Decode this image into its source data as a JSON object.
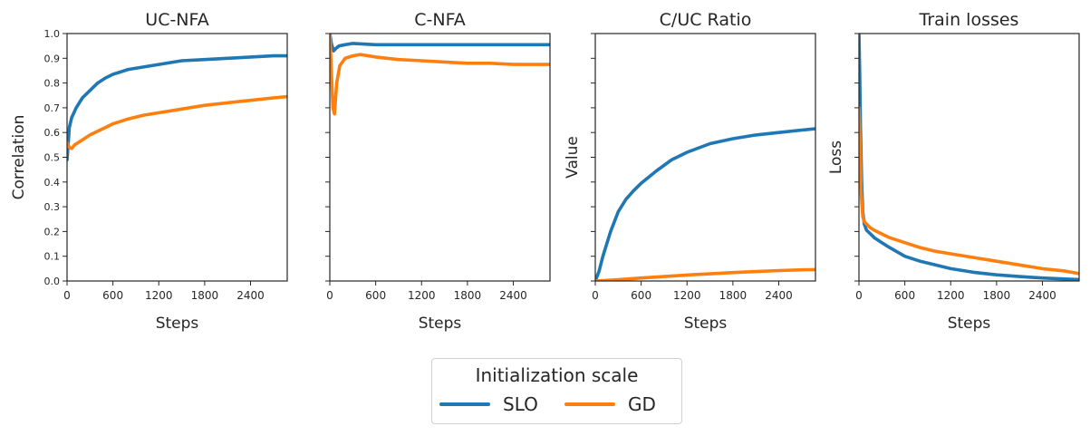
{
  "legend": {
    "title": "Initialization scale",
    "entries": [
      {
        "label": "SLO",
        "color": "#1f77b4"
      },
      {
        "label": "GD",
        "color": "#ff7f0e"
      }
    ],
    "placement": "bottom-center"
  },
  "chart_data": [
    {
      "type": "line",
      "title": "UC-NFA",
      "xlabel": "Steps",
      "ylabel": "Correlation",
      "xlim": [
        0,
        2880
      ],
      "ylim": [
        0,
        1.0
      ],
      "xticks": [
        "0",
        "600",
        "1200",
        "1800",
        "2400"
      ],
      "yticks": [
        "0.0",
        "0.1",
        "0.2",
        "0.3",
        "0.4",
        "0.5",
        "0.6",
        "0.7",
        "0.8",
        "0.9",
        "1.0"
      ],
      "grid": false,
      "series": [
        {
          "name": "SLO",
          "color": "#1f77b4",
          "x": [
            0,
            30,
            60,
            120,
            200,
            300,
            400,
            500,
            600,
            800,
            1000,
            1200,
            1500,
            1800,
            2100,
            2400,
            2700,
            2880
          ],
          "y": [
            0.49,
            0.62,
            0.66,
            0.7,
            0.74,
            0.77,
            0.8,
            0.82,
            0.835,
            0.855,
            0.865,
            0.875,
            0.89,
            0.895,
            0.9,
            0.905,
            0.91,
            0.91
          ]
        },
        {
          "name": "GD",
          "color": "#ff7f0e",
          "x": [
            0,
            30,
            60,
            100,
            200,
            300,
            400,
            500,
            600,
            800,
            1000,
            1200,
            1500,
            1800,
            2100,
            2400,
            2700,
            2880
          ],
          "y": [
            0.56,
            0.54,
            0.535,
            0.55,
            0.57,
            0.59,
            0.605,
            0.62,
            0.635,
            0.655,
            0.67,
            0.68,
            0.695,
            0.71,
            0.72,
            0.73,
            0.74,
            0.745
          ]
        }
      ]
    },
    {
      "type": "line",
      "title": "C-NFA",
      "xlabel": "Steps",
      "ylabel": "",
      "xlim": [
        0,
        2880
      ],
      "ylim": [
        0,
        1.0
      ],
      "xticks": [
        "0",
        "600",
        "1200",
        "1800",
        "2400"
      ],
      "yticks": [],
      "grid": false,
      "series": [
        {
          "name": "SLO",
          "color": "#1f77b4",
          "x": [
            0,
            20,
            50,
            80,
            120,
            200,
            300,
            600,
            900,
            1200,
            1500,
            1800,
            2100,
            2400,
            2700,
            2880
          ],
          "y": [
            1.0,
            0.96,
            0.93,
            0.94,
            0.95,
            0.955,
            0.96,
            0.955,
            0.955,
            0.955,
            0.955,
            0.955,
            0.955,
            0.955,
            0.955,
            0.955
          ]
        },
        {
          "name": "GD",
          "color": "#ff7f0e",
          "x": [
            0,
            20,
            40,
            60,
            90,
            130,
            200,
            300,
            400,
            600,
            900,
            1200,
            1500,
            1800,
            2100,
            2400,
            2700,
            2880
          ],
          "y": [
            1.0,
            0.85,
            0.7,
            0.675,
            0.8,
            0.87,
            0.9,
            0.91,
            0.915,
            0.905,
            0.895,
            0.89,
            0.885,
            0.88,
            0.88,
            0.875,
            0.875,
            0.875
          ]
        }
      ]
    },
    {
      "type": "line",
      "title": "C/UC Ratio",
      "xlabel": "Steps",
      "ylabel": "Value",
      "xlim": [
        0,
        2880
      ],
      "ylim": [
        0,
        1.0
      ],
      "xticks": [
        "0",
        "600",
        "1200",
        "1800",
        "2400"
      ],
      "yticks": [],
      "grid": false,
      "series": [
        {
          "name": "SLO",
          "color": "#1f77b4",
          "x": [
            0,
            50,
            100,
            200,
            300,
            400,
            500,
            600,
            800,
            1000,
            1200,
            1500,
            1800,
            2100,
            2400,
            2700,
            2880
          ],
          "y": [
            0.0,
            0.04,
            0.1,
            0.2,
            0.28,
            0.33,
            0.365,
            0.395,
            0.445,
            0.49,
            0.52,
            0.555,
            0.575,
            0.59,
            0.6,
            0.61,
            0.615
          ]
        },
        {
          "name": "GD",
          "color": "#ff7f0e",
          "x": [
            0,
            300,
            600,
            900,
            1200,
            1500,
            1800,
            2100,
            2400,
            2700,
            2880
          ],
          "y": [
            0.0,
            0.005,
            0.012,
            0.018,
            0.024,
            0.029,
            0.034,
            0.038,
            0.042,
            0.045,
            0.046
          ]
        }
      ]
    },
    {
      "type": "line",
      "title": "Train losses",
      "xlabel": "Steps",
      "ylabel": "Loss",
      "xlim": [
        0,
        2880
      ],
      "ylim": [
        0,
        1.0
      ],
      "xticks": [
        "0",
        "600",
        "1200",
        "1800",
        "2400"
      ],
      "yticks": [],
      "grid": false,
      "series": [
        {
          "name": "SLO",
          "color": "#1f77b4",
          "x": [
            0,
            10,
            20,
            35,
            50,
            70,
            100,
            150,
            200,
            300,
            400,
            600,
            800,
            1000,
            1200,
            1500,
            1800,
            2100,
            2400,
            2700,
            2880
          ],
          "y": [
            1.0,
            0.85,
            0.62,
            0.4,
            0.28,
            0.23,
            0.205,
            0.19,
            0.175,
            0.155,
            0.135,
            0.1,
            0.08,
            0.065,
            0.05,
            0.035,
            0.025,
            0.018,
            0.012,
            0.008,
            0.006
          ]
        },
        {
          "name": "GD",
          "color": "#ff7f0e",
          "x": [
            0,
            15,
            30,
            50,
            70,
            100,
            150,
            200,
            300,
            400,
            600,
            800,
            1000,
            1200,
            1500,
            1800,
            2100,
            2400,
            2700,
            2880
          ],
          "y": [
            0.7,
            0.55,
            0.35,
            0.26,
            0.24,
            0.23,
            0.215,
            0.205,
            0.19,
            0.175,
            0.155,
            0.135,
            0.12,
            0.11,
            0.095,
            0.08,
            0.065,
            0.05,
            0.04,
            0.03
          ]
        }
      ]
    }
  ]
}
